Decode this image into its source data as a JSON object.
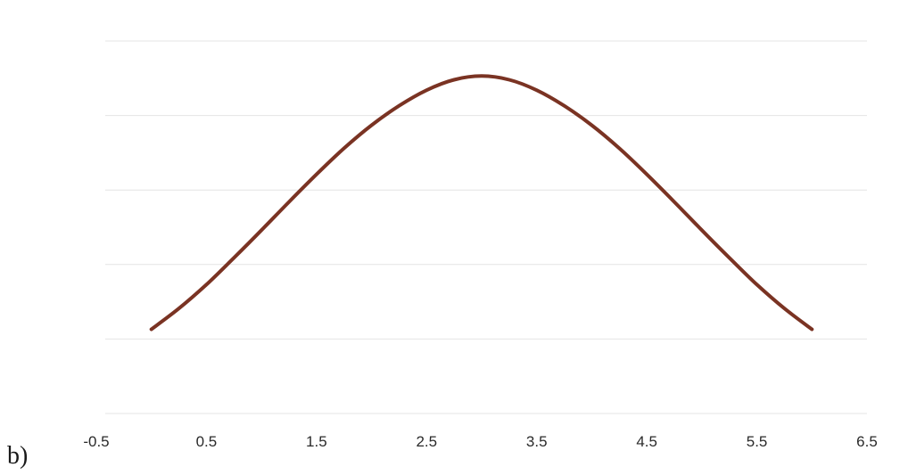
{
  "part_label": "b)",
  "colors": {
    "curve": "#7a3323",
    "gridline": "#e4e4e4",
    "tick_text": "#2a2a2a"
  },
  "chart_data": {
    "type": "line",
    "title": "",
    "xlabel": "",
    "ylabel": "",
    "xlim": [
      -0.5,
      6.5
    ],
    "x_ticks": [
      "-0.5",
      "0.5",
      "1.5",
      "2.5",
      "3.5",
      "4.5",
      "5.5",
      "6.5"
    ],
    "ylim": [
      0,
      5
    ],
    "y_gridlines": [
      0,
      1,
      2,
      3,
      4,
      5
    ],
    "y_ticks_visible": false,
    "grid": "horizontal",
    "legend": "none",
    "series": [
      {
        "x": [
          0,
          0.25,
          0.5,
          0.75,
          1,
          1.25,
          1.5,
          1.75,
          2,
          2.25,
          2.5,
          2.75,
          3,
          3.25,
          3.5,
          3.75,
          4,
          4.25,
          4.5,
          4.75,
          5,
          5.25,
          5.5,
          5.75,
          6
        ],
        "y": [
          1.13,
          1.41,
          1.73,
          2.09,
          2.46,
          2.84,
          3.21,
          3.56,
          3.87,
          4.13,
          4.34,
          4.48,
          4.53,
          4.48,
          4.34,
          4.13,
          3.87,
          3.56,
          3.21,
          2.84,
          2.46,
          2.09,
          1.73,
          1.41,
          1.13
        ]
      }
    ]
  }
}
